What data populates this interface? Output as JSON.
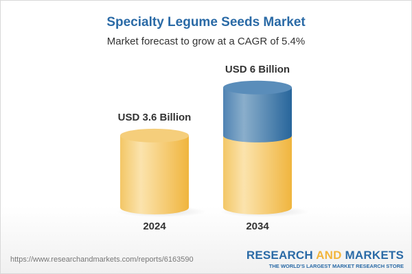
{
  "title": "Specialty Legume Seeds Market",
  "subtitle": "Market forecast to grow at a CAGR of 5.4%",
  "chart_data": {
    "type": "bar",
    "style": "3d-cylinder",
    "categories": [
      "2024",
      "2034"
    ],
    "values": [
      3.6,
      6
    ],
    "data_labels": [
      "USD 3.6 Billion",
      "USD 6 Billion"
    ],
    "unit": "USD Billion",
    "colors": {
      "base": "#f2c062",
      "growth": "#3f78aa"
    },
    "grid": false
  },
  "footer": {
    "url": "https://www.researchandmarkets.com/reports/6163590",
    "logo_line1_a": "RESEARCH ",
    "logo_line1_b": "AND",
    "logo_line1_c": " MARKETS",
    "logo_line2": "THE WORLD'S LARGEST MARKET RESEARCH STORE"
  }
}
